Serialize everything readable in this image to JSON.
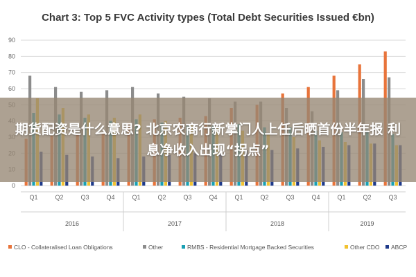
{
  "chart_data": {
    "type": "bar",
    "title": "Chart 3: Top 5 FVC Activity types (Total Debt Securities Issued €bn)",
    "xlabel": "",
    "ylabel": "",
    "ylim": [
      0,
      90
    ],
    "yticks": [
      0,
      10,
      20,
      30,
      40,
      50,
      60,
      70,
      80,
      90
    ],
    "grid": true,
    "legend_position": "bottom",
    "categories": [
      "Q1",
      "Q2",
      "Q3",
      "Q4",
      "Q1",
      "Q2",
      "Q3",
      "Q4",
      "Q1",
      "Q2",
      "Q3",
      "Q4",
      "Q1",
      "Q2",
      "Q3"
    ],
    "groups": [
      {
        "label": "2016",
        "start": 0,
        "count": 4
      },
      {
        "label": "2017",
        "start": 4,
        "count": 4
      },
      {
        "label": "2018",
        "start": 8,
        "count": 4
      },
      {
        "label": "2019",
        "start": 12,
        "count": 3
      }
    ],
    "series": [
      {
        "name": "CLO - Collateralised Loan Obligations",
        "color": "#e8743b",
        "values": [
          29,
          31,
          32,
          33,
          39,
          41,
          42,
          43,
          48,
          50,
          57,
          61,
          68,
          75,
          83
        ]
      },
      {
        "name": "Other",
        "color": "#8c8c8c",
        "values": [
          68,
          61,
          58,
          59,
          61,
          57,
          55,
          54,
          52,
          52,
          48,
          46,
          59,
          66,
          67
        ]
      },
      {
        "name": "RMBS - Residential Mortgage Backed Securities",
        "color": "#19a0b4",
        "values": [
          45,
          44,
          42,
          40,
          41,
          39,
          37,
          37,
          38,
          36,
          36,
          34,
          33,
          34,
          32
        ]
      },
      {
        "name": "Other CDO",
        "color": "#f2c230",
        "values": [
          54,
          48,
          44,
          42,
          44,
          40,
          38,
          36,
          34,
          32,
          30,
          28,
          27,
          26,
          25
        ]
      },
      {
        "name": "ABCP",
        "color": "#1f3a8a",
        "values": [
          21,
          19,
          18,
          17,
          18,
          19,
          20,
          21,
          22,
          22,
          23,
          24,
          25,
          26,
          25
        ]
      }
    ]
  },
  "overlay": {
    "text": "期货配资是什么意思? 北京农商行新掌门人上任后晒首份半年报 利息净收入出现“拐点”"
  }
}
